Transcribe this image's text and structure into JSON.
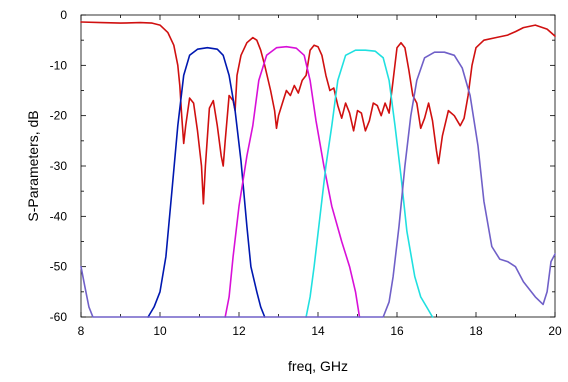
{
  "chart_data": {
    "type": "line",
    "xlabel": "freq, GHz",
    "ylabel": "S-Parameters, dB",
    "xlim": [
      8,
      20
    ],
    "ylim": [
      -60,
      0
    ],
    "x_ticks": [
      "8",
      "10",
      "12",
      "14",
      "16",
      "18",
      "20"
    ],
    "y_ticks": [
      "0",
      "-10",
      "-20",
      "-30",
      "-40",
      "-50",
      "-60"
    ],
    "grid": false,
    "legend": "none",
    "series": [
      {
        "color": "#d01010",
        "points": [
          [
            8.0,
            -1.4
          ],
          [
            8.5,
            -1.5
          ],
          [
            9.0,
            -1.6
          ],
          [
            9.5,
            -1.5
          ],
          [
            9.8,
            -1.6
          ],
          [
            10.0,
            -2.0
          ],
          [
            10.2,
            -3.5
          ],
          [
            10.35,
            -6.0
          ],
          [
            10.45,
            -10.0
          ],
          [
            10.5,
            -14.0
          ],
          [
            10.55,
            -20.0
          ],
          [
            10.6,
            -25.5
          ],
          [
            10.65,
            -22.0
          ],
          [
            10.75,
            -16.5
          ],
          [
            10.85,
            -17.5
          ],
          [
            10.95,
            -23.0
          ],
          [
            11.05,
            -30.0
          ],
          [
            11.1,
            -37.5
          ],
          [
            11.15,
            -30.0
          ],
          [
            11.25,
            -18.5
          ],
          [
            11.35,
            -17.0
          ],
          [
            11.45,
            -22.0
          ],
          [
            11.55,
            -28.0
          ],
          [
            11.6,
            -30.0
          ],
          [
            11.65,
            -25.0
          ],
          [
            11.75,
            -16.0
          ],
          [
            11.85,
            -17.0
          ],
          [
            11.9,
            -19.0
          ],
          [
            11.95,
            -12.0
          ],
          [
            12.05,
            -8.0
          ],
          [
            12.2,
            -5.5
          ],
          [
            12.35,
            -4.5
          ],
          [
            12.45,
            -5.0
          ],
          [
            12.55,
            -7.0
          ],
          [
            12.65,
            -10.0
          ],
          [
            12.8,
            -15.0
          ],
          [
            12.9,
            -19.0
          ],
          [
            12.95,
            -22.5
          ],
          [
            13.0,
            -20.0
          ],
          [
            13.1,
            -17.5
          ],
          [
            13.2,
            -15.0
          ],
          [
            13.3,
            -16.0
          ],
          [
            13.4,
            -14.0
          ],
          [
            13.5,
            -15.5
          ],
          [
            13.6,
            -13.0
          ],
          [
            13.7,
            -12.0
          ],
          [
            13.8,
            -7.0
          ],
          [
            13.9,
            -6.0
          ],
          [
            14.0,
            -6.3
          ],
          [
            14.1,
            -8.0
          ],
          [
            14.2,
            -12.0
          ],
          [
            14.3,
            -15.0
          ],
          [
            14.4,
            -14.5
          ],
          [
            14.5,
            -18.0
          ],
          [
            14.6,
            -20.5
          ],
          [
            14.7,
            -17.5
          ],
          [
            14.8,
            -19.5
          ],
          [
            14.9,
            -23.0
          ],
          [
            15.0,
            -19.0
          ],
          [
            15.1,
            -19.5
          ],
          [
            15.2,
            -23.0
          ],
          [
            15.3,
            -21.0
          ],
          [
            15.4,
            -17.5
          ],
          [
            15.5,
            -18.0
          ],
          [
            15.6,
            -20.0
          ],
          [
            15.7,
            -17.5
          ],
          [
            15.8,
            -19.5
          ],
          [
            15.9,
            -13.0
          ],
          [
            16.0,
            -6.5
          ],
          [
            16.1,
            -5.5
          ],
          [
            16.2,
            -6.5
          ],
          [
            16.3,
            -11.0
          ],
          [
            16.4,
            -16.0
          ],
          [
            16.5,
            -17.5
          ],
          [
            16.6,
            -22.5
          ],
          [
            16.7,
            -20.5
          ],
          [
            16.8,
            -17.5
          ],
          [
            16.9,
            -21.0
          ],
          [
            17.0,
            -27.0
          ],
          [
            17.05,
            -29.5
          ],
          [
            17.15,
            -24.0
          ],
          [
            17.3,
            -19.0
          ],
          [
            17.45,
            -20.0
          ],
          [
            17.6,
            -22.0
          ],
          [
            17.7,
            -20.5
          ],
          [
            17.8,
            -16.0
          ],
          [
            17.9,
            -10.0
          ],
          [
            18.0,
            -6.5
          ],
          [
            18.2,
            -5.0
          ],
          [
            18.5,
            -4.5
          ],
          [
            18.8,
            -4.0
          ],
          [
            19.0,
            -3.3
          ],
          [
            19.2,
            -2.5
          ],
          [
            19.5,
            -2.0
          ],
          [
            19.8,
            -2.8
          ],
          [
            20.0,
            -4.2
          ]
        ]
      },
      {
        "color": "#0018b0",
        "points": [
          [
            9.7,
            -60.0
          ],
          [
            9.85,
            -58.0
          ],
          [
            10.0,
            -55.0
          ],
          [
            10.15,
            -48.0
          ],
          [
            10.3,
            -35.0
          ],
          [
            10.45,
            -22.0
          ],
          [
            10.6,
            -12.0
          ],
          [
            10.75,
            -8.0
          ],
          [
            10.95,
            -6.8
          ],
          [
            11.2,
            -6.5
          ],
          [
            11.45,
            -6.8
          ],
          [
            11.6,
            -8.0
          ],
          [
            11.75,
            -12.0
          ],
          [
            11.9,
            -19.0
          ],
          [
            12.05,
            -29.0
          ],
          [
            12.2,
            -42.0
          ],
          [
            12.3,
            -50.0
          ],
          [
            12.45,
            -55.0
          ],
          [
            12.55,
            -58.0
          ],
          [
            12.65,
            -60.0
          ]
        ]
      },
      {
        "color": "#d810d8",
        "points": [
          [
            11.65,
            -60.0
          ],
          [
            11.75,
            -56.0
          ],
          [
            11.85,
            -48.0
          ],
          [
            12.0,
            -38.0
          ],
          [
            12.2,
            -28.0
          ],
          [
            12.35,
            -22.0
          ],
          [
            12.5,
            -13.0
          ],
          [
            12.7,
            -8.0
          ],
          [
            12.95,
            -6.5
          ],
          [
            13.2,
            -6.3
          ],
          [
            13.45,
            -6.6
          ],
          [
            13.65,
            -8.0
          ],
          [
            13.8,
            -13.0
          ],
          [
            13.95,
            -21.0
          ],
          [
            14.15,
            -30.0
          ],
          [
            14.35,
            -38.0
          ],
          [
            14.6,
            -45.0
          ],
          [
            14.8,
            -50.0
          ],
          [
            14.95,
            -55.0
          ],
          [
            15.05,
            -60.0
          ]
        ]
      },
      {
        "color": "#20e0e0",
        "points": [
          [
            13.7,
            -60.0
          ],
          [
            13.8,
            -56.0
          ],
          [
            13.9,
            -50.0
          ],
          [
            14.05,
            -40.0
          ],
          [
            14.2,
            -30.0
          ],
          [
            14.35,
            -22.0
          ],
          [
            14.5,
            -13.0
          ],
          [
            14.7,
            -8.0
          ],
          [
            14.95,
            -7.0
          ],
          [
            15.2,
            -7.0
          ],
          [
            15.45,
            -7.2
          ],
          [
            15.65,
            -8.5
          ],
          [
            15.8,
            -13.0
          ],
          [
            15.95,
            -22.0
          ],
          [
            16.1,
            -32.0
          ],
          [
            16.25,
            -43.0
          ],
          [
            16.45,
            -52.0
          ],
          [
            16.6,
            -56.0
          ],
          [
            16.75,
            -58.0
          ],
          [
            16.9,
            -60.0
          ]
        ]
      },
      {
        "color": "#7060c8",
        "points": [
          [
            8.0,
            -50.0
          ],
          [
            8.1,
            -54.0
          ],
          [
            8.2,
            -58.0
          ],
          [
            8.3,
            -60.0
          ],
          [
            15.65,
            -60.0
          ],
          [
            15.8,
            -57.0
          ],
          [
            15.9,
            -52.0
          ],
          [
            16.05,
            -42.0
          ],
          [
            16.2,
            -30.0
          ],
          [
            16.35,
            -20.0
          ],
          [
            16.5,
            -13.0
          ],
          [
            16.7,
            -8.5
          ],
          [
            16.95,
            -7.4
          ],
          [
            17.2,
            -7.4
          ],
          [
            17.45,
            -8.0
          ],
          [
            17.65,
            -10.5
          ],
          [
            17.85,
            -16.0
          ],
          [
            18.05,
            -26.0
          ],
          [
            18.2,
            -37.0
          ],
          [
            18.4,
            -46.0
          ],
          [
            18.6,
            -48.5
          ],
          [
            18.8,
            -49.0
          ],
          [
            19.0,
            -50.0
          ],
          [
            19.2,
            -53.0
          ],
          [
            19.5,
            -56.0
          ],
          [
            19.7,
            -57.5
          ],
          [
            19.8,
            -55.0
          ],
          [
            19.9,
            -49.0
          ],
          [
            20.0,
            -47.5
          ]
        ]
      }
    ]
  }
}
